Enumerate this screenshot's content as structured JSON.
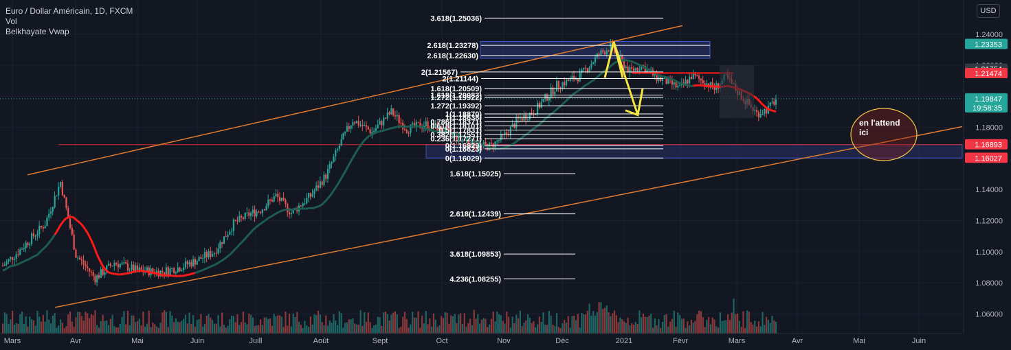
{
  "header": {
    "symbol": "Euro / Dollar Américain, 1D, FXCM",
    "indicators": [
      "Vol",
      "Belkhayate Vwap"
    ],
    "currency_button": "USD"
  },
  "colors": {
    "background": "#131722",
    "up": "#26a69a",
    "down": "#ef5350",
    "vwap_low": "#1e5e50",
    "vwap_high": "#ff1a1a",
    "channel": "#e07b30",
    "support": "#d32f2f",
    "fib": "#ffffff",
    "zone": "#3f51b5",
    "arrow": "#f5e642",
    "circle": "#f7c845",
    "price_tag_current": "#26a69a",
    "price_tag_red": "#f23645",
    "price_tag_grey": "#363a45"
  },
  "chart_data": {
    "type": "candlestick",
    "instrument": "EUR/USD",
    "timeframe": "1D",
    "ylim": [
      1.05,
      1.262
    ],
    "y_ticks": [
      "1.24000",
      "1.22000",
      "1.20000",
      "1.18000",
      "1.16000",
      "1.14000",
      "1.12000",
      "1.10000",
      "1.08000",
      "1.06000"
    ],
    "x_ticks": [
      "Mars",
      "Avr",
      "Mai",
      "Juin",
      "Juill",
      "Août",
      "Sept",
      "Oct",
      "Nov",
      "Déc",
      "2021",
      "Févr",
      "Mars",
      "Avr",
      "Mai",
      "Juin"
    ],
    "price_path": [
      [
        0,
        1.091
      ],
      [
        8,
        1.1
      ],
      [
        22,
        1.118
      ],
      [
        30,
        1.145
      ],
      [
        38,
        1.098
      ],
      [
        48,
        1.083
      ],
      [
        58,
        1.093
      ],
      [
        70,
        1.088
      ],
      [
        82,
        1.087
      ],
      [
        92,
        1.09
      ],
      [
        100,
        1.094
      ],
      [
        110,
        1.1
      ],
      [
        120,
        1.118
      ],
      [
        128,
        1.124
      ],
      [
        134,
        1.127
      ],
      [
        142,
        1.136
      ],
      [
        150,
        1.125
      ],
      [
        160,
        1.136
      ],
      [
        168,
        1.149
      ],
      [
        176,
        1.171
      ],
      [
        182,
        1.185
      ],
      [
        192,
        1.177
      ],
      [
        202,
        1.19
      ],
      [
        210,
        1.179
      ],
      [
        220,
        1.182
      ],
      [
        232,
        1.176
      ],
      [
        240,
        1.172
      ],
      [
        246,
        1.168
      ],
      [
        254,
        1.168
      ],
      [
        262,
        1.176
      ],
      [
        268,
        1.185
      ],
      [
        276,
        1.19
      ],
      [
        288,
        1.207
      ],
      [
        300,
        1.213
      ],
      [
        310,
        1.227
      ],
      [
        316,
        1.232
      ],
      [
        320,
        1.225
      ],
      [
        326,
        1.216
      ],
      [
        332,
        1.22
      ],
      [
        340,
        1.212
      ],
      [
        346,
        1.209
      ],
      [
        352,
        1.205
      ],
      [
        358,
        1.213
      ],
      [
        364,
        1.21
      ],
      [
        370,
        1.205
      ],
      [
        376,
        1.212
      ],
      [
        384,
        1.2
      ],
      [
        392,
        1.189
      ],
      [
        398,
        1.192
      ],
      [
        402,
        1.198
      ]
    ],
    "volume_max": 1,
    "belkhayate_vwap": "smoothed average line under price, color shifts from dark teal to red",
    "annotations": {
      "channel": "ascending orange channel",
      "horizontal_support": "1.16893",
      "target_zone": [
        "1.16893",
        "1.16027"
      ],
      "note": "en l'attend ici",
      "arrow": "yellow arrow from top to downside"
    }
  },
  "fib_labels_upper": [
    {
      "label": "3.618(1.25036)",
      "value": 1.25036
    },
    {
      "label": "2.618(1.23278)",
      "value": 1.23278
    },
    {
      "label": "2.618(1.22630)",
      "value": 1.2263
    },
    {
      "label": "2(1.21567)",
      "value": 1.21567
    },
    {
      "label": "2(1.21144)",
      "value": 1.21144
    },
    {
      "label": "1.618(1.20509)",
      "value": 1.20509
    },
    {
      "label": "1.618(1.20083)",
      "value": 1.20083
    },
    {
      "label": "1.272(1.19922)",
      "value": 1.19922
    },
    {
      "label": "1.272(1.19392)",
      "value": 1.19392
    },
    {
      "label": "1(1.18870)",
      "value": 1.1887
    },
    {
      "label": "1(1.18638)",
      "value": 1.18638
    },
    {
      "label": "0.786(1.18371)",
      "value": 1.18371
    },
    {
      "label": "0.618(1.18101)",
      "value": 1.18101
    },
    {
      "label": "0.5(1.17831)",
      "value": 1.17831
    },
    {
      "label": "0.382(1.17551)",
      "value": 1.17551
    },
    {
      "label": "0.236(1.17271)",
      "value": 1.17271
    },
    {
      "label": "0(1.16829)",
      "value": 1.16829
    },
    {
      "label": "0(1.16623)",
      "value": 1.16623
    },
    {
      "label": "0(1.16029)",
      "value": 1.16029
    }
  ],
  "fib_labels_lower": [
    {
      "label": "1.618(1.15025)",
      "value": 1.15025
    },
    {
      "label": "2.618(1.12439)",
      "value": 1.12439
    },
    {
      "label": "3.618(1.09853)",
      "value": 1.09853
    },
    {
      "label": "4.236(1.08255)",
      "value": 1.08255
    }
  ],
  "price_tags": [
    {
      "label": "1.23353",
      "value": 1.23353,
      "kind": "teal"
    },
    {
      "label": "1.21754",
      "value": 1.21754,
      "kind": "grey"
    },
    {
      "label": "1.21474",
      "value": 1.21474,
      "kind": "red"
    },
    {
      "label": "1.19847",
      "value": 1.19847,
      "kind": "teal",
      "sub": "19:58:35"
    },
    {
      "label": "1.16893",
      "value": 1.16893,
      "kind": "red"
    },
    {
      "label": "1.16027",
      "value": 1.16027,
      "kind": "red"
    }
  ],
  "note": {
    "line1": "en l'attend",
    "line2": "ici"
  }
}
